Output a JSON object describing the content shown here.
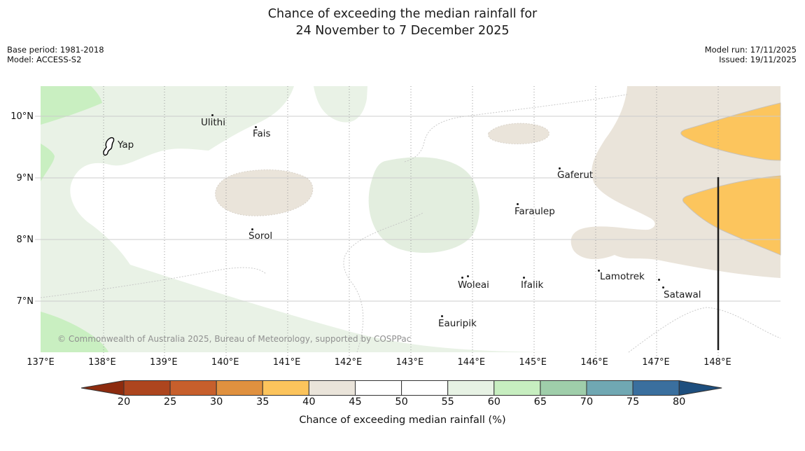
{
  "title": {
    "line1": "Chance of exceeding the median rainfall for",
    "line2": "24 November to 7 December 2025"
  },
  "meta": {
    "base_period": "Base period: 1981-2018",
    "model": "Model: ACCESS-S2",
    "model_run": "Model run: 17/11/2025",
    "issued": "Issued: 19/11/2025"
  },
  "map": {
    "copyright": "© Commonwealth of Australia 2025, Bureau of Meteorology, supported by COSPPac",
    "islands": [
      {
        "name": "Yap"
      },
      {
        "name": "Ulithi"
      },
      {
        "name": "Fais"
      },
      {
        "name": "Sorol"
      },
      {
        "name": "Gaferut"
      },
      {
        "name": "Faraulep"
      },
      {
        "name": "Woleai"
      },
      {
        "name": "Ifalik"
      },
      {
        "name": "Eauripik"
      },
      {
        "name": "Lamotrek"
      },
      {
        "name": "Satawal"
      }
    ],
    "lat_labels": [
      "10°N",
      "9°N",
      "8°N",
      "7°N"
    ],
    "lon_labels": [
      "137°E",
      "138°E",
      "139°E",
      "140°E",
      "141°E",
      "142°E",
      "143°E",
      "144°E",
      "145°E",
      "146°E",
      "147°E",
      "148°E"
    ],
    "colors": {
      "white_45_55": "#ffffff",
      "light_green_55_60": "#e9f2e6",
      "sage_green_55_60": "#e3eedf",
      "bright_green_60_65": "#c9efc1",
      "beige_40_45": "#eae4da",
      "orange_35_40": "#fcc55d",
      "contour_line": "#c4c4c4",
      "lat_gridline": "#cccccc",
      "lon_gridline": "#999999",
      "boundary_line": "#1c1c1c"
    }
  },
  "colorbar": {
    "label": "Chance of exceeding median rainfall (%)",
    "ticks": [
      20,
      25,
      30,
      35,
      40,
      45,
      50,
      55,
      60,
      65,
      70,
      75,
      80
    ],
    "segment_colors": [
      "#ad451e",
      "#c75f2c",
      "#e0913f",
      "#fcc45c",
      "#eae4da",
      "#ffffff",
      "#ffffff",
      "#e7f2e4",
      "#c7eec0",
      "#9fceaa",
      "#70a8b3",
      "#3a6f9e"
    ],
    "arrow_low_color": "#8d2b0e",
    "arrow_high_color": "#1d4e7e",
    "outline_color": "#333333"
  }
}
